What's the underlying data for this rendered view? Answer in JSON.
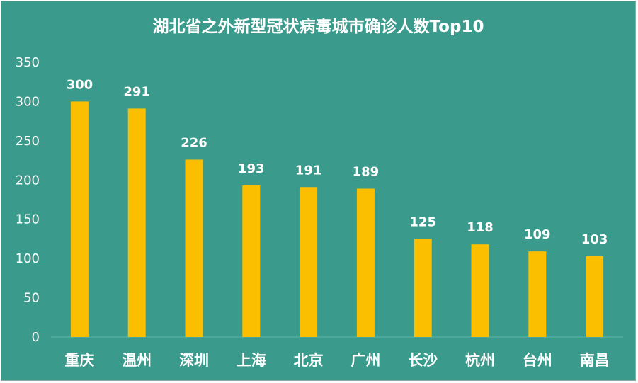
{
  "chart_data": {
    "type": "bar",
    "title": "湖北省之外新型冠状病毒城市确诊人数Top10",
    "categories": [
      "重庆",
      "温州",
      "深圳",
      "上海",
      "北京",
      "广州",
      "长沙",
      "杭州",
      "台州",
      "南昌"
    ],
    "values": [
      300,
      291,
      226,
      193,
      191,
      189,
      125,
      118,
      109,
      103
    ],
    "ylim": [
      0,
      350
    ],
    "yticks": [
      0,
      50,
      100,
      150,
      200,
      250,
      300,
      350
    ],
    "grid": false,
    "data_labels": true,
    "colors": {
      "background": "#3a9a8c",
      "bar": "#fcbf00",
      "text": "#ffffff"
    }
  }
}
